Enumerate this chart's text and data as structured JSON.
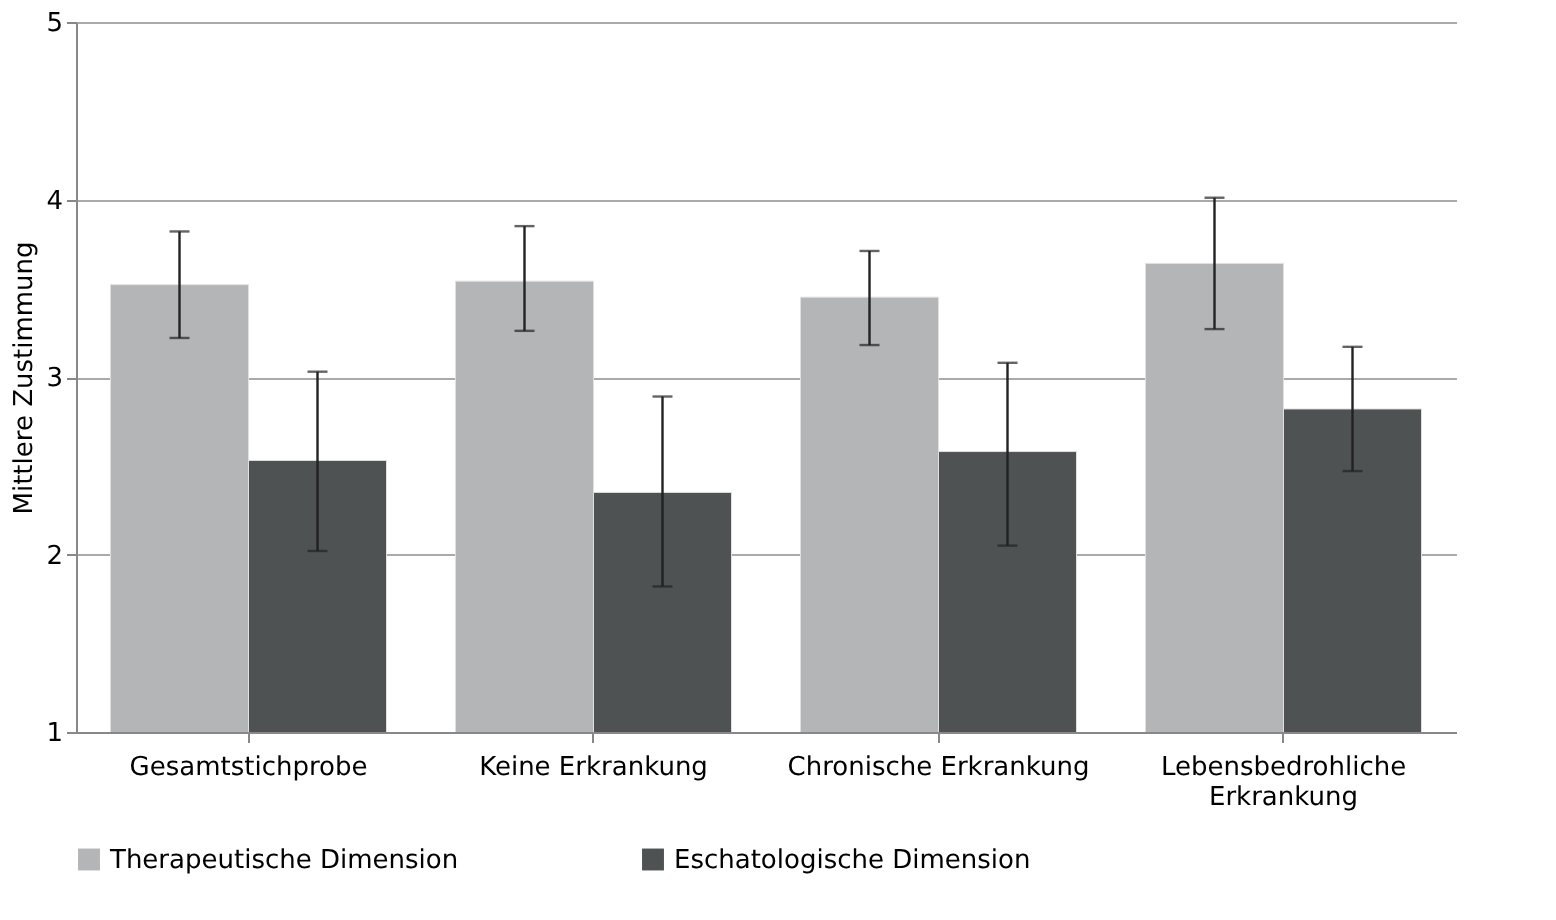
{
  "chart_data": {
    "type": "bar",
    "ylabel": "Mittlere Zustimmung",
    "categories": [
      "Gesamtstichprobe",
      "Keine Erkrankung",
      "Chronische Erkrankung",
      "Lebensbedrohliche Erkrankung"
    ],
    "series": [
      {
        "name": "Therapeutische Dimension",
        "color": "#b3b5b6",
        "values": [
          3.52,
          3.54,
          3.45,
          3.64
        ],
        "errors": [
          [
            3.22,
            3.82
          ],
          [
            3.26,
            3.85
          ],
          [
            3.18,
            3.71
          ],
          [
            3.27,
            4.01
          ]
        ]
      },
      {
        "name": "Eschatologische Dimension",
        "color": "#4f5253",
        "values": [
          2.53,
          2.35,
          2.58,
          2.82
        ],
        "errors": [
          [
            2.02,
            3.03
          ],
          [
            1.82,
            2.89
          ],
          [
            2.05,
            3.08
          ],
          [
            2.47,
            3.17
          ]
        ]
      }
    ],
    "ylim": [
      1,
      5
    ],
    "yticks": [
      1,
      2,
      3,
      4,
      5
    ],
    "grid": "y",
    "legend": "bottom"
  }
}
